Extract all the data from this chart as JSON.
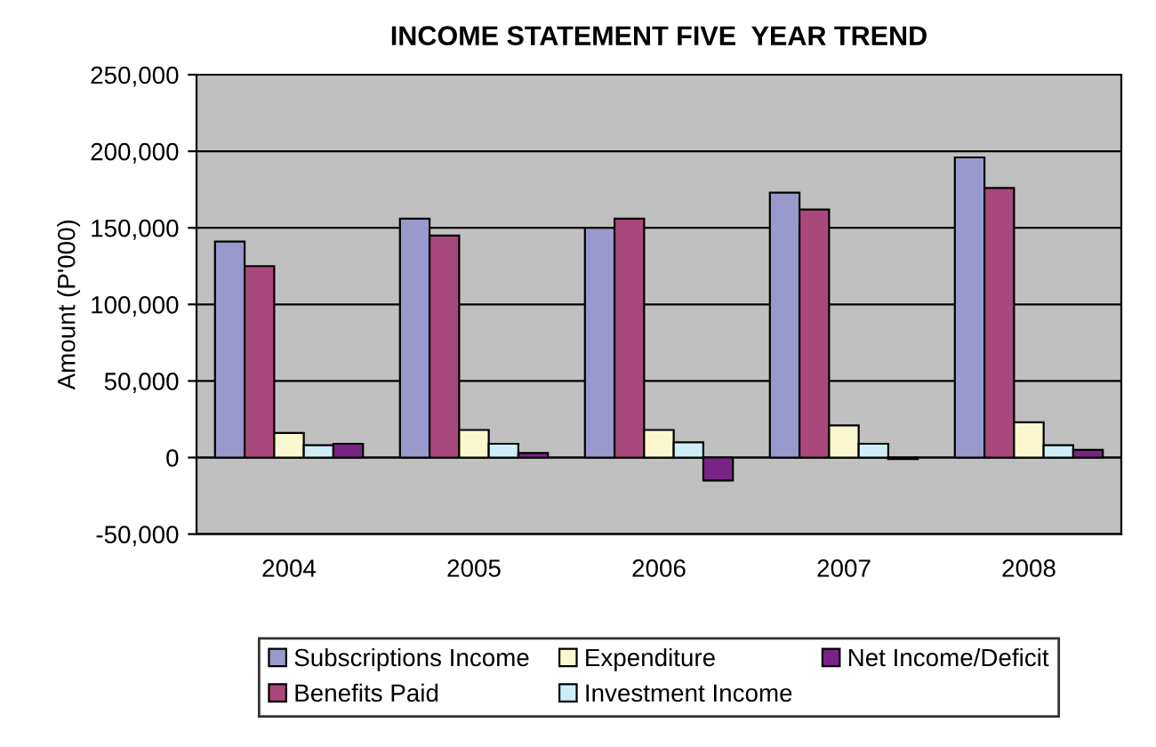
{
  "chart_data": {
    "type": "bar",
    "title": "INCOME STATEMENT FIVE  YEAR TREND",
    "ylabel": "Amount (P'000)",
    "categories": [
      "2004",
      "2005",
      "2006",
      "2007",
      "2008"
    ],
    "series": [
      {
        "name": "Subscriptions Income",
        "color": "#9999cc",
        "values": [
          141000,
          156000,
          150000,
          173000,
          196000
        ]
      },
      {
        "name": "Benefits Paid",
        "color": "#a9487a",
        "values": [
          125000,
          145000,
          156000,
          162000,
          176000
        ]
      },
      {
        "name": "Expenditure",
        "color": "#fbf8cf",
        "values": [
          16000,
          18000,
          18000,
          21000,
          23000
        ]
      },
      {
        "name": "Investment Income",
        "color": "#cdeef5",
        "values": [
          8000,
          9000,
          10000,
          9000,
          8000
        ]
      },
      {
        "name": "Net Income/Deficit",
        "color": "#7a2386",
        "values": [
          9000,
          3000,
          -15000,
          -1000,
          5000
        ]
      }
    ],
    "ylim": [
      -50000,
      250000
    ],
    "yticks": [
      {
        "value": -50000,
        "label": "-50,000"
      },
      {
        "value": 0,
        "label": "0"
      },
      {
        "value": 50000,
        "label": "50,000"
      },
      {
        "value": 100000,
        "label": "100,000"
      },
      {
        "value": 150000,
        "label": "150,000"
      },
      {
        "value": 200000,
        "label": "200,000"
      },
      {
        "value": 250000,
        "label": "250,000"
      }
    ],
    "grid": "y",
    "legend": "bottom"
  }
}
